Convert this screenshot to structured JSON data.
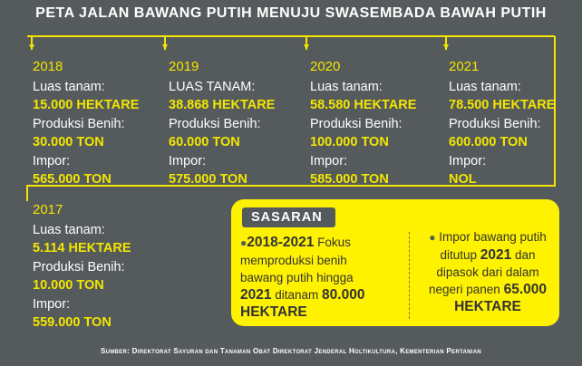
{
  "title": "PETA JALAN BAWANG PUTIH MENUJU SWASEMBADA BAWAH PUTIH",
  "colors": {
    "background": "#555a5c",
    "accent": "#f2e600",
    "text": "#ffffff"
  },
  "years": [
    {
      "year": "2018",
      "area_label": "Luas tanam:",
      "area": "15.000 HEKTARE",
      "seed_label": "Produksi Benih:",
      "seed": "30.000 TON",
      "import_label": "Impor:",
      "import": "565.000 TON"
    },
    {
      "year": "2019",
      "area_label": "LUAS TANAM:",
      "area": "38.868 HEKTARE",
      "seed_label": "Produksi Benih:",
      "seed": "60.000 TON",
      "import_label": "Impor:",
      "import": "575.000 TON"
    },
    {
      "year": "2020",
      "area_label": "Luas tanam:",
      "area": "58.580 HEKTARE",
      "seed_label": "Produksi Benih:",
      "seed": "100.000 TON",
      "import_label": "Impor:",
      "import": "585.000 TON"
    },
    {
      "year": "2021",
      "area_label": "Luas tanam:",
      "area": "78.500 HEKTARE",
      "seed_label": "Produksi Benih:",
      "seed": "600.000 TON",
      "import_label": "Impor:",
      "import": "NOL"
    },
    {
      "year": "2017",
      "area_label": "Luas tanam:",
      "area": "5.114 HEKTARE",
      "seed_label": "Produksi Benih:",
      "seed": "10.000 TON",
      "import_label": "Impor:",
      "import": "559.000 TON"
    }
  ],
  "target": {
    "header": "SASARAN",
    "left": {
      "period": "2018-2021",
      "line1": "Fokus",
      "line2": "memproduksi benih",
      "line3": "bawang putih hingga",
      "year": "2021",
      "mid": "ditanam",
      "amount": "80.000",
      "unit": "HEKTARE"
    },
    "right": {
      "line1": "Impor bawang putih",
      "line2a": "ditutup",
      "year": "2021",
      "line2b": "dan",
      "line3": "dipasok dari dalam",
      "line4a": "negeri panen",
      "amount": "65.000",
      "unit": "HEKTARE"
    }
  },
  "footer": "Sumber: Direktorat Sayuran dan Tanaman Obat Direktorat Jenderal Holtikultura, Kementerian Pertanian"
}
